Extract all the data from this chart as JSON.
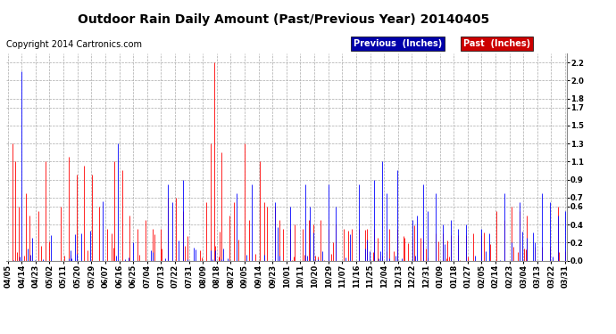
{
  "title": "Outdoor Rain Daily Amount (Past/Previous Year) 20140405",
  "copyright": "Copyright 2014 Cartronics.com",
  "legend_previous": "Previous  (Inches)",
  "legend_past": "Past  (Inches)",
  "previous_color": "#0000ff",
  "past_color": "#ff0000",
  "legend_previous_bg": "#0000aa",
  "legend_past_bg": "#cc0000",
  "yticks": [
    0.0,
    0.2,
    0.4,
    0.6,
    0.7,
    0.9,
    1.1,
    1.3,
    1.5,
    1.7,
    1.8,
    2.0,
    2.2
  ],
  "ylim": [
    0.0,
    2.3
  ],
  "background_color": "#ffffff",
  "plot_bg": "#ffffff",
  "grid_color": "#aaaaaa",
  "xtick_labels": [
    "04/05",
    "04/14",
    "04/23",
    "05/02",
    "05/11",
    "05/20",
    "05/29",
    "06/07",
    "06/16",
    "06/25",
    "07/04",
    "07/13",
    "07/22",
    "07/31",
    "08/09",
    "08/18",
    "08/27",
    "09/05",
    "09/14",
    "09/23",
    "10/01",
    "10/11",
    "10/20",
    "10/29",
    "11/07",
    "11/16",
    "11/25",
    "12/04",
    "12/13",
    "12/22",
    "12/31",
    "01/09",
    "01/18",
    "01/27",
    "02/05",
    "02/14",
    "02/23",
    "03/04",
    "03/13",
    "03/22",
    "03/31"
  ],
  "n_days": 366,
  "title_fontsize": 10,
  "copyright_fontsize": 7,
  "tick_fontsize": 6,
  "legend_fontsize": 7
}
